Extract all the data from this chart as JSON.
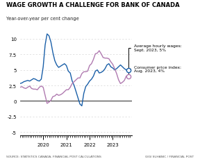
{
  "title": "WAGE GROWTH A CHALLENGE FOR BANK OF CANADA",
  "subtitle": "Year-over-year per cent change",
  "source": "SOURCE: STATISTICS CANADA, FINANCIAL POST CALCULATIONS",
  "credit": "GIGI SUHANIC / FINANCIAL POST",
  "ylim": [
    -5.5,
    12.0
  ],
  "yticks": [
    -5.0,
    -2.5,
    0.0,
    2.5,
    5.0,
    7.5,
    10.0
  ],
  "xlabel_years": [
    "2020",
    "2021",
    "2022",
    "2023"
  ],
  "wage_color": "#1a5fa8",
  "cpi_color": "#b07ab0",
  "annotation_wage": "Average hourly wages:\nSept. 2023, 5%",
  "annotation_cpi": "Consumer price index:\nAug. 2023, 4%",
  "wage_data": {
    "x": [
      2019.0,
      2019.083,
      2019.167,
      2019.25,
      2019.333,
      2019.417,
      2019.5,
      2019.583,
      2019.667,
      2019.75,
      2019.833,
      2019.917,
      2020.0,
      2020.083,
      2020.167,
      2020.25,
      2020.333,
      2020.417,
      2020.5,
      2020.583,
      2020.667,
      2020.75,
      2020.833,
      2020.917,
      2021.0,
      2021.083,
      2021.167,
      2021.25,
      2021.333,
      2021.417,
      2021.5,
      2021.583,
      2021.667,
      2021.75,
      2021.833,
      2021.917,
      2022.0,
      2022.083,
      2022.167,
      2022.25,
      2022.333,
      2022.417,
      2022.5,
      2022.583,
      2022.667,
      2022.75,
      2022.833,
      2022.917,
      2023.0,
      2023.083,
      2023.167,
      2023.25,
      2023.333,
      2023.417,
      2023.5,
      2023.583,
      2023.667
    ],
    "y": [
      2.8,
      2.9,
      3.1,
      3.2,
      3.3,
      3.2,
      3.4,
      3.6,
      3.5,
      3.3,
      3.2,
      3.5,
      5.5,
      9.0,
      10.8,
      10.5,
      9.5,
      7.8,
      6.5,
      5.8,
      5.4,
      5.6,
      5.8,
      6.0,
      5.7,
      4.8,
      4.5,
      3.2,
      2.5,
      1.5,
      0.5,
      -0.5,
      -0.8,
      1.2,
      2.3,
      2.7,
      3.2,
      3.5,
      4.0,
      4.8,
      5.0,
      4.5,
      4.6,
      4.8,
      5.2,
      5.8,
      6.0,
      5.5,
      5.3,
      5.0,
      5.2,
      5.5,
      5.8,
      5.5,
      5.2,
      5.0,
      5.0
    ]
  },
  "cpi_data": {
    "x": [
      2019.0,
      2019.083,
      2019.167,
      2019.25,
      2019.333,
      2019.417,
      2019.5,
      2019.583,
      2019.667,
      2019.75,
      2019.833,
      2019.917,
      2020.0,
      2020.083,
      2020.167,
      2020.25,
      2020.333,
      2020.417,
      2020.5,
      2020.583,
      2020.667,
      2020.75,
      2020.833,
      2020.917,
      2021.0,
      2021.083,
      2021.167,
      2021.25,
      2021.333,
      2021.417,
      2021.5,
      2021.583,
      2021.667,
      2021.75,
      2021.833,
      2021.917,
      2022.0,
      2022.083,
      2022.167,
      2022.25,
      2022.333,
      2022.417,
      2022.5,
      2022.583,
      2022.667,
      2022.75,
      2022.833,
      2022.917,
      2023.0,
      2023.083,
      2023.167,
      2023.25,
      2023.333,
      2023.417,
      2023.5,
      2023.583,
      2023.667
    ],
    "y": [
      2.2,
      2.3,
      2.1,
      2.0,
      2.2,
      2.4,
      2.0,
      1.9,
      1.9,
      1.8,
      2.2,
      2.4,
      2.2,
      0.9,
      -0.4,
      -0.2,
      0.1,
      0.7,
      0.8,
      1.1,
      0.9,
      1.0,
      1.2,
      1.5,
      1.8,
      1.8,
      2.2,
      2.8,
      3.1,
      3.4,
      3.7,
      3.7,
      4.4,
      4.7,
      4.7,
      4.8,
      5.7,
      6.0,
      6.7,
      7.6,
      7.7,
      8.1,
      7.6,
      7.0,
      6.9,
      6.9,
      6.8,
      6.3,
      5.9,
      5.2,
      4.4,
      3.4,
      2.8,
      3.0,
      3.3,
      4.0,
      4.0
    ]
  }
}
